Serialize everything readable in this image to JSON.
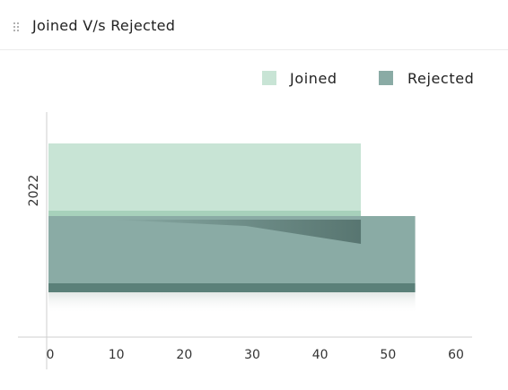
{
  "header": {
    "title": "Joined V/s Rejected",
    "drag_icon": "drag-handle-icon"
  },
  "chart_data": {
    "type": "bar",
    "orientation": "horizontal",
    "style": "3d",
    "title": "Joined V/s Rejected",
    "categories": [
      "2022"
    ],
    "series": [
      {
        "name": "Joined",
        "values": [
          46
        ],
        "color": "#c8e4d5"
      },
      {
        "name": "Rejected",
        "values": [
          54
        ],
        "color": "#8aaba5"
      }
    ],
    "xlim": [
      0,
      60
    ],
    "x_ticks": [
      "0",
      "10",
      "20",
      "30",
      "40",
      "50",
      "60"
    ],
    "legend_placement": "top-right",
    "grid": false
  }
}
